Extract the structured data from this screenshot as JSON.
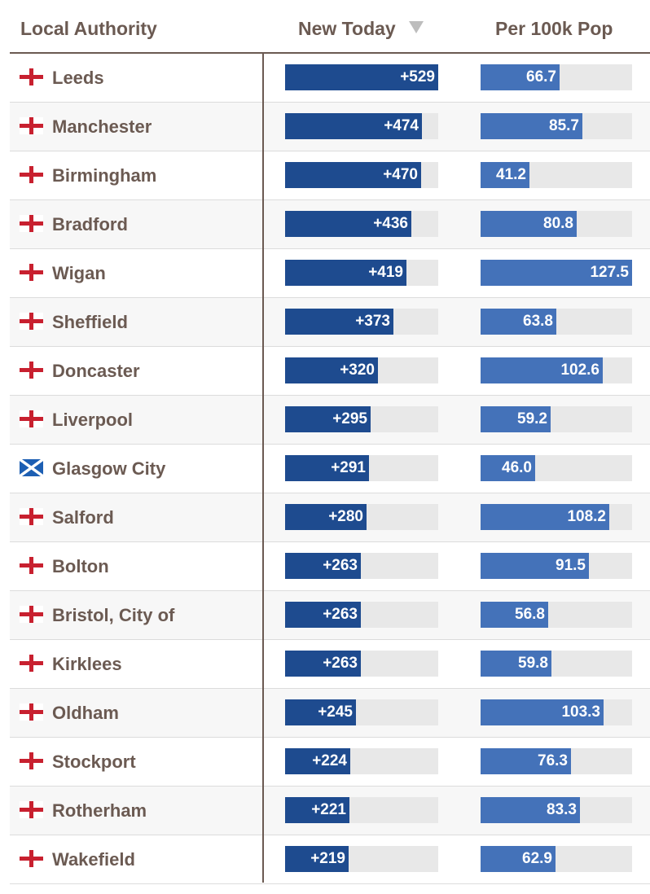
{
  "headers": {
    "local_authority": "Local Authority",
    "new_today": "New Today",
    "per_100k": "Per 100k Pop"
  },
  "colors": {
    "new_bar": "#1e4b8f",
    "per_bar": "#4472b9",
    "bar_track": "#e8e8e8",
    "text": "#6b5a52"
  },
  "chart_data": {
    "type": "table",
    "sort": {
      "column": "new_today",
      "direction": "descending"
    },
    "max_new": 529,
    "max_per": 127.5,
    "rows": [
      {
        "flag": "england",
        "name": "Leeds",
        "new_label": "+529",
        "new": 529,
        "per_label": "66.7",
        "per": 66.7
      },
      {
        "flag": "england",
        "name": "Manchester",
        "new_label": "+474",
        "new": 474,
        "per_label": "85.7",
        "per": 85.7
      },
      {
        "flag": "england",
        "name": "Birmingham",
        "new_label": "+470",
        "new": 470,
        "per_label": "41.2",
        "per": 41.2
      },
      {
        "flag": "england",
        "name": "Bradford",
        "new_label": "+436",
        "new": 436,
        "per_label": "80.8",
        "per": 80.8
      },
      {
        "flag": "england",
        "name": "Wigan",
        "new_label": "+419",
        "new": 419,
        "per_label": "127.5",
        "per": 127.5
      },
      {
        "flag": "england",
        "name": "Sheffield",
        "new_label": "+373",
        "new": 373,
        "per_label": "63.8",
        "per": 63.8
      },
      {
        "flag": "england",
        "name": "Doncaster",
        "new_label": "+320",
        "new": 320,
        "per_label": "102.6",
        "per": 102.6
      },
      {
        "flag": "england",
        "name": "Liverpool",
        "new_label": "+295",
        "new": 295,
        "per_label": "59.2",
        "per": 59.2
      },
      {
        "flag": "scotland",
        "name": "Glasgow City",
        "new_label": "+291",
        "new": 291,
        "per_label": "46.0",
        "per": 46.0
      },
      {
        "flag": "england",
        "name": "Salford",
        "new_label": "+280",
        "new": 280,
        "per_label": "108.2",
        "per": 108.2
      },
      {
        "flag": "england",
        "name": "Bolton",
        "new_label": "+263",
        "new": 263,
        "per_label": "91.5",
        "per": 91.5
      },
      {
        "flag": "england",
        "name": "Bristol, City of",
        "new_label": "+263",
        "new": 263,
        "per_label": "56.8",
        "per": 56.8
      },
      {
        "flag": "england",
        "name": "Kirklees",
        "new_label": "+263",
        "new": 263,
        "per_label": "59.8",
        "per": 59.8
      },
      {
        "flag": "england",
        "name": "Oldham",
        "new_label": "+245",
        "new": 245,
        "per_label": "103.3",
        "per": 103.3
      },
      {
        "flag": "england",
        "name": "Stockport",
        "new_label": "+224",
        "new": 224,
        "per_label": "76.3",
        "per": 76.3
      },
      {
        "flag": "england",
        "name": "Rotherham",
        "new_label": "+221",
        "new": 221,
        "per_label": "83.3",
        "per": 83.3
      },
      {
        "flag": "england",
        "name": "Wakefield",
        "new_label": "+219",
        "new": 219,
        "per_label": "62.9",
        "per": 62.9
      }
    ]
  }
}
